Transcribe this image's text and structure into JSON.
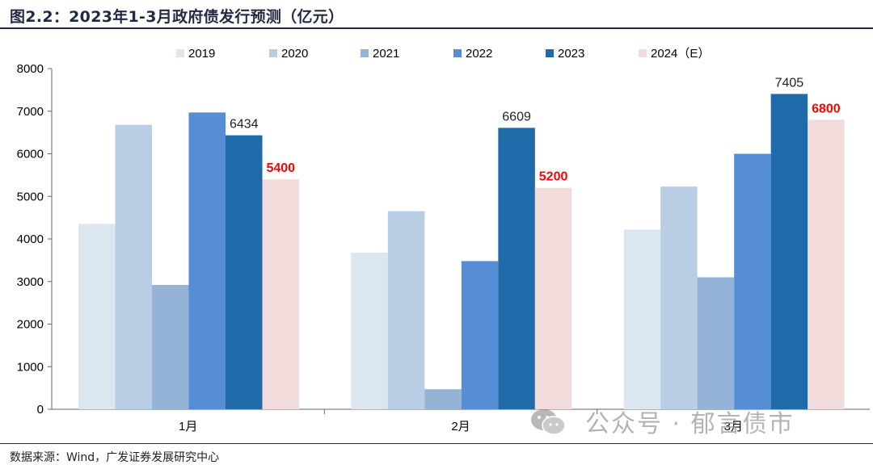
{
  "title": "图2.2：2023年1-3月政府债发行预测（亿元）",
  "source": "数据来源：Wind，广发证券发展研究中心",
  "watermark": "公众号 · 郁言债市",
  "chart_data": {
    "type": "bar",
    "title": "2023年1-3月政府债发行预测（亿元）",
    "xlabel": "",
    "ylabel": "",
    "ylim": [
      0,
      8000
    ],
    "yticks": [
      "0",
      "1000",
      "2000",
      "3000",
      "4000",
      "5000",
      "6000",
      "7000",
      "8000"
    ],
    "categories": [
      "1月",
      "2月",
      "3月"
    ],
    "legend_position": "top",
    "series": [
      {
        "name": "2019",
        "color": "#dce6f1",
        "values": [
          4350,
          3680,
          4220
        ]
      },
      {
        "name": "2020",
        "color": "#b9cde5",
        "values": [
          6680,
          4650,
          5230
        ]
      },
      {
        "name": "2021",
        "color": "#95b3d7",
        "values": [
          2920,
          470,
          3100
        ]
      },
      {
        "name": "2022",
        "color": "#558ed5",
        "values": [
          6970,
          3480,
          6000
        ]
      },
      {
        "name": "2023",
        "color": "#1f6aa8",
        "values": [
          6434,
          6609,
          7405
        ]
      },
      {
        "name": "2024（E）",
        "color": "#f2dcdb",
        "values": [
          5400,
          5200,
          6800
        ]
      }
    ],
    "data_labels": [
      {
        "series": "2023",
        "category": "1月",
        "text": "6434",
        "color": "#222222",
        "bold": false
      },
      {
        "series": "2023",
        "category": "2月",
        "text": "6609",
        "color": "#222222",
        "bold": false
      },
      {
        "series": "2023",
        "category": "3月",
        "text": "7405",
        "color": "#222222",
        "bold": false
      },
      {
        "series": "2024（E）",
        "category": "1月",
        "text": "5400",
        "color": "#ff0000",
        "bold": true
      },
      {
        "series": "2024（E）",
        "category": "2月",
        "text": "5200",
        "color": "#ff0000",
        "bold": true
      },
      {
        "series": "2024（E）",
        "category": "3月",
        "text": "6800",
        "color": "#ff0000",
        "bold": true
      }
    ]
  }
}
